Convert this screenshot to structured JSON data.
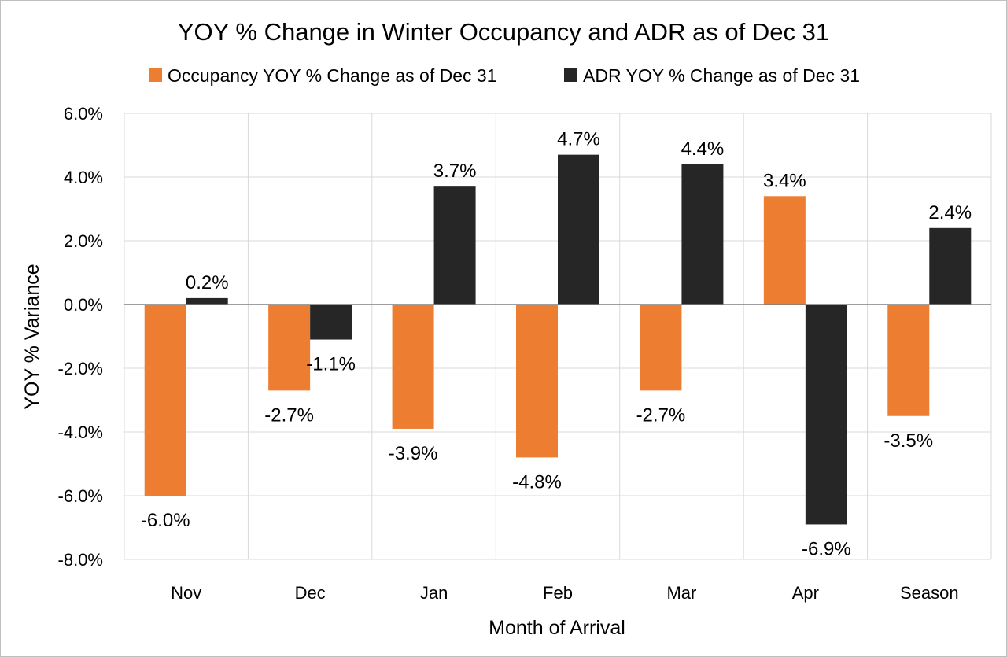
{
  "chart_data": {
    "type": "bar",
    "title": "YOY % Change in Winter Occupancy and ADR as of Dec 31",
    "xlabel": "Month of Arrival",
    "ylabel": "YOY % Variance",
    "categories": [
      "Nov",
      "Dec",
      "Jan",
      "Feb",
      "Mar",
      "Apr",
      "Season"
    ],
    "ylim": [
      -8.0,
      6.0
    ],
    "yticks": [
      6.0,
      4.0,
      2.0,
      0.0,
      -2.0,
      -4.0,
      -6.0,
      -8.0
    ],
    "ytick_labels": [
      "6.0%",
      "4.0%",
      "2.0%",
      "0.0%",
      "-2.0%",
      "-4.0%",
      "-6.0%",
      "-8.0%"
    ],
    "grid": true,
    "legend_position": "top",
    "series": [
      {
        "name": "Occupancy YOY % Change as of Dec 31",
        "color": "#ed7d31",
        "values": [
          -6.0,
          -2.7,
          -3.9,
          -4.8,
          -2.7,
          3.4,
          -3.5
        ],
        "labels": [
          "-6.0%",
          "-2.7%",
          "-3.9%",
          "-4.8%",
          "-2.7%",
          "3.4%",
          "-3.5%"
        ]
      },
      {
        "name": "ADR YOY % Change as of Dec 31",
        "color": "#262626",
        "values": [
          0.2,
          -1.1,
          3.7,
          4.7,
          4.4,
          -6.9,
          2.4
        ],
        "labels": [
          "0.2%",
          "-1.1%",
          "3.7%",
          "4.7%",
          "4.4%",
          "-6.9%",
          "2.4%"
        ]
      }
    ]
  }
}
